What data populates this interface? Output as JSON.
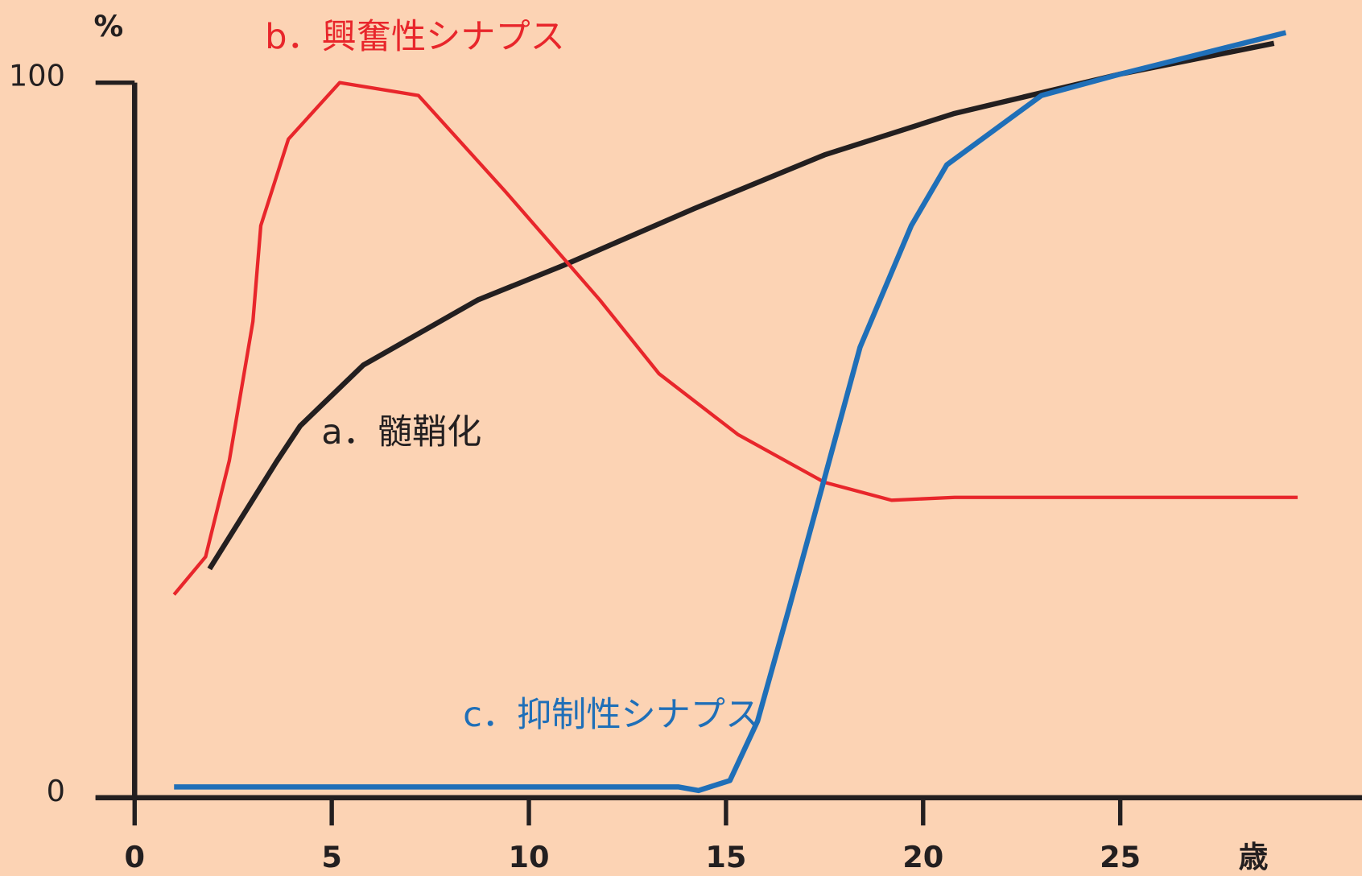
{
  "chart_data": {
    "type": "line",
    "y_label": "%",
    "x_label": "歳",
    "xlim": [
      0,
      31
    ],
    "ylim": [
      0,
      100
    ],
    "xticks": [
      0,
      5,
      10,
      15,
      20,
      25
    ],
    "yticks": [
      0,
      100
    ],
    "series": [
      {
        "name": "a．髄鞘化",
        "color": "#231f20",
        "x": [
          1.9,
          3.6,
          4.2,
          5.8,
          8.7,
          10.9,
          14.2,
          17.5,
          20.8,
          25,
          28.9
        ],
        "values": [
          32,
          47,
          52,
          60.5,
          69.6,
          74.5,
          82.4,
          89.9,
          95.7,
          101.2,
          105.5
        ]
      },
      {
        "name": "b．興奮性シナプス",
        "color": "#e8262b",
        "x": [
          1,
          1.8,
          2.4,
          3,
          3.2,
          3.9,
          5.2,
          7.2,
          9.4,
          11.8,
          13.3,
          15.3,
          17.5,
          19.2,
          20.8,
          29.5
        ],
        "values": [
          28.4,
          33.7,
          47.1,
          66.6,
          80,
          92.1,
          100,
          98.2,
          84.8,
          69.6,
          59.3,
          50.8,
          44.1,
          41.6,
          42,
          42
        ]
      },
      {
        "name": "c．抑制性シナプス",
        "color": "#1f6fb8",
        "x": [
          1,
          13.8,
          14.3,
          15.1,
          15.8,
          16.6,
          17.5,
          18.4,
          19.7,
          20.6,
          23,
          25,
          29.2
        ],
        "values": [
          1.5,
          1.5,
          1,
          2.4,
          10.7,
          26.5,
          44.7,
          63,
          80,
          88.5,
          98.2,
          101.2,
          107
        ]
      }
    ]
  }
}
